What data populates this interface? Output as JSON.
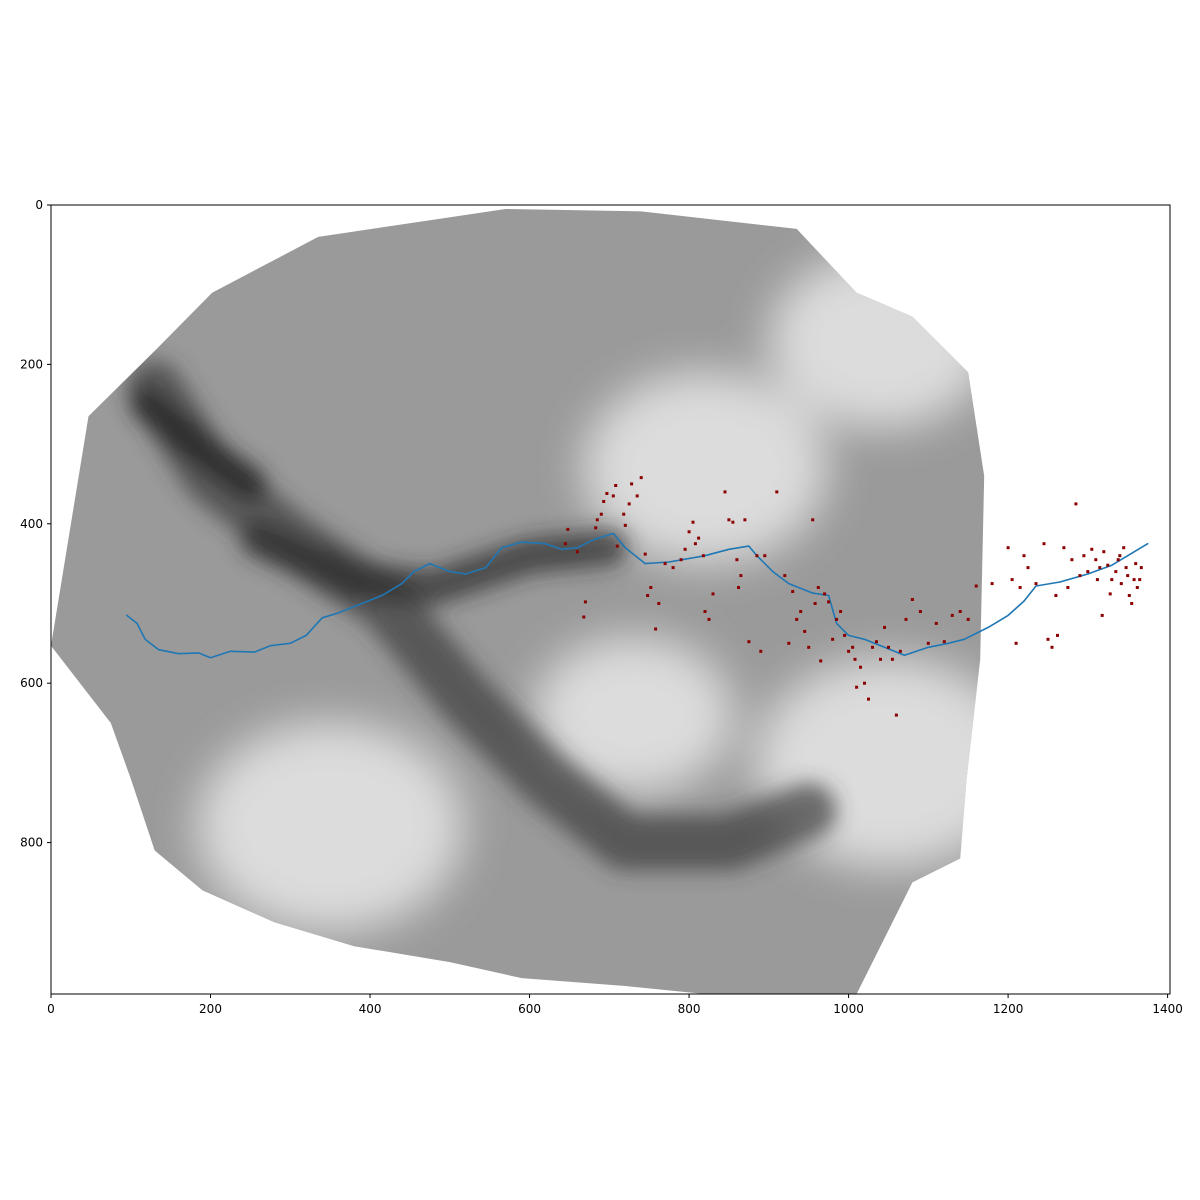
{
  "chart_data": {
    "type": "heatmap",
    "title": "",
    "xlabel": "",
    "ylabel": "",
    "xlim": [
      0,
      1403
    ],
    "ylim": [
      990,
      0
    ],
    "x_ticks": [
      {
        "value": 0,
        "label": "0"
      },
      {
        "value": 200,
        "label": "200"
      },
      {
        "value": 400,
        "label": "400"
      },
      {
        "value": 600,
        "label": "600"
      },
      {
        "value": 800,
        "label": "800"
      },
      {
        "value": 1000,
        "label": "1000"
      },
      {
        "value": 1200,
        "label": "1200"
      },
      {
        "value": 1400,
        "label": "1400"
      }
    ],
    "y_ticks": [
      {
        "value": 0,
        "label": "0"
      },
      {
        "value": 200,
        "label": "200"
      },
      {
        "value": 400,
        "label": "400"
      },
      {
        "value": 600,
        "label": "600"
      },
      {
        "value": 800,
        "label": "800"
      }
    ],
    "colormap": "gray",
    "colors": {
      "river": "#1f77b4",
      "points": "#8b0000"
    },
    "raster_boundary": [
      [
        0,
        553
      ],
      [
        47,
        265
      ],
      [
        135,
        178
      ],
      [
        202,
        110
      ],
      [
        335,
        40
      ],
      [
        570,
        5
      ],
      [
        740,
        8
      ],
      [
        935,
        30
      ],
      [
        1010,
        110
      ],
      [
        1080,
        140
      ],
      [
        1150,
        210
      ],
      [
        1170,
        340
      ],
      [
        1165,
        570
      ],
      [
        1148,
        720
      ],
      [
        1140,
        820
      ],
      [
        1080,
        850
      ],
      [
        1010,
        990
      ],
      [
        820,
        990
      ],
      [
        720,
        980
      ],
      [
        590,
        970
      ],
      [
        500,
        950
      ],
      [
        380,
        930
      ],
      [
        280,
        900
      ],
      [
        190,
        860
      ],
      [
        130,
        810
      ],
      [
        100,
        720
      ],
      [
        75,
        650
      ]
    ],
    "dark_valleys": [
      {
        "points": [
          [
            130,
            230
          ],
          [
            200,
            340
          ],
          [
            300,
            420
          ],
          [
            420,
            500
          ],
          [
            520,
            620
          ],
          [
            620,
            720
          ],
          [
            720,
            800
          ],
          [
            850,
            800
          ],
          [
            950,
            760
          ]
        ],
        "width": 70
      },
      {
        "points": [
          [
            260,
            420
          ],
          [
            380,
            470
          ],
          [
            480,
            480
          ],
          [
            600,
            440
          ],
          [
            700,
            430
          ]
        ],
        "width": 45
      },
      {
        "points": [
          [
            120,
            250
          ],
          [
            180,
            300
          ],
          [
            250,
            350
          ]
        ],
        "width": 40
      }
    ],
    "bright_ridges": [
      {
        "cx": 730,
        "cy": 640,
        "r": 90
      },
      {
        "cx": 820,
        "cy": 330,
        "r": 110
      },
      {
        "cx": 1050,
        "cy": 700,
        "r": 120
      },
      {
        "cx": 350,
        "cy": 780,
        "r": 120
      },
      {
        "cx": 1040,
        "cy": 170,
        "r": 100
      }
    ],
    "series": [
      {
        "type": "line",
        "points": [
          [
            95,
            515
          ],
          [
            108,
            525
          ],
          [
            118,
            545
          ],
          [
            135,
            558
          ],
          [
            160,
            563
          ],
          [
            185,
            562
          ],
          [
            200,
            568
          ],
          [
            225,
            560
          ],
          [
            255,
            561
          ],
          [
            275,
            553
          ],
          [
            300,
            550
          ],
          [
            320,
            540
          ],
          [
            340,
            518
          ],
          [
            360,
            512
          ],
          [
            390,
            500
          ],
          [
            415,
            490
          ],
          [
            440,
            475
          ],
          [
            455,
            460
          ],
          [
            475,
            450
          ],
          [
            500,
            460
          ],
          [
            520,
            463
          ],
          [
            545,
            455
          ],
          [
            565,
            430
          ],
          [
            590,
            423
          ],
          [
            620,
            425
          ],
          [
            640,
            432
          ],
          [
            660,
            430
          ],
          [
            680,
            420
          ],
          [
            705,
            412
          ],
          [
            720,
            430
          ],
          [
            745,
            450
          ],
          [
            775,
            448
          ],
          [
            820,
            440
          ],
          [
            850,
            432
          ],
          [
            875,
            428
          ],
          [
            885,
            440
          ],
          [
            905,
            460
          ],
          [
            925,
            475
          ],
          [
            955,
            487
          ],
          [
            975,
            490
          ],
          [
            985,
            525
          ],
          [
            1000,
            540
          ],
          [
            1020,
            545
          ],
          [
            1045,
            555
          ],
          [
            1070,
            565
          ],
          [
            1100,
            555
          ],
          [
            1125,
            550
          ],
          [
            1145,
            545
          ],
          [
            1175,
            530
          ],
          [
            1200,
            515
          ],
          [
            1220,
            497
          ],
          [
            1235,
            478
          ],
          [
            1265,
            473
          ],
          [
            1300,
            463
          ],
          [
            1330,
            452
          ],
          [
            1350,
            440
          ],
          [
            1375,
            425
          ]
        ]
      },
      {
        "type": "scatter",
        "points": [
          [
            645,
            425
          ],
          [
            648,
            407
          ],
          [
            660,
            435
          ],
          [
            668,
            517
          ],
          [
            670,
            498
          ],
          [
            683,
            405
          ],
          [
            685,
            395
          ],
          [
            690,
            388
          ],
          [
            693,
            372
          ],
          [
            697,
            362
          ],
          [
            705,
            365
          ],
          [
            708,
            352
          ],
          [
            710,
            428
          ],
          [
            718,
            388
          ],
          [
            720,
            402
          ],
          [
            725,
            375
          ],
          [
            728,
            350
          ],
          [
            735,
            365
          ],
          [
            740,
            342
          ],
          [
            745,
            438
          ],
          [
            748,
            490
          ],
          [
            752,
            480
          ],
          [
            758,
            532
          ],
          [
            762,
            500
          ],
          [
            770,
            450
          ],
          [
            780,
            455
          ],
          [
            790,
            445
          ],
          [
            795,
            432
          ],
          [
            800,
            410
          ],
          [
            805,
            398
          ],
          [
            808,
            425
          ],
          [
            812,
            418
          ],
          [
            818,
            440
          ],
          [
            820,
            510
          ],
          [
            825,
            520
          ],
          [
            830,
            488
          ],
          [
            845,
            360
          ],
          [
            850,
            395
          ],
          [
            855,
            398
          ],
          [
            860,
            445
          ],
          [
            862,
            480
          ],
          [
            865,
            465
          ],
          [
            870,
            395
          ],
          [
            875,
            548
          ],
          [
            885,
            440
          ],
          [
            890,
            560
          ],
          [
            895,
            440
          ],
          [
            910,
            360
          ],
          [
            920,
            465
          ],
          [
            925,
            550
          ],
          [
            930,
            485
          ],
          [
            935,
            520
          ],
          [
            940,
            510
          ],
          [
            945,
            535
          ],
          [
            950,
            555
          ],
          [
            955,
            395
          ],
          [
            958,
            500
          ],
          [
            962,
            480
          ],
          [
            965,
            572
          ],
          [
            970,
            488
          ],
          [
            975,
            498
          ],
          [
            980,
            545
          ],
          [
            985,
            520
          ],
          [
            990,
            510
          ],
          [
            995,
            540
          ],
          [
            1000,
            560
          ],
          [
            1005,
            555
          ],
          [
            1008,
            570
          ],
          [
            1010,
            605
          ],
          [
            1015,
            580
          ],
          [
            1020,
            600
          ],
          [
            1025,
            620
          ],
          [
            1030,
            555
          ],
          [
            1035,
            548
          ],
          [
            1040,
            570
          ],
          [
            1045,
            530
          ],
          [
            1050,
            555
          ],
          [
            1055,
            570
          ],
          [
            1060,
            640
          ],
          [
            1065,
            560
          ],
          [
            1072,
            520
          ],
          [
            1080,
            495
          ],
          [
            1090,
            510
          ],
          [
            1100,
            550
          ],
          [
            1110,
            525
          ],
          [
            1120,
            548
          ],
          [
            1130,
            515
          ],
          [
            1140,
            510
          ],
          [
            1150,
            520
          ],
          [
            1160,
            478
          ],
          [
            1180,
            475
          ],
          [
            1200,
            430
          ],
          [
            1205,
            470
          ],
          [
            1210,
            550
          ],
          [
            1215,
            480
          ],
          [
            1220,
            440
          ],
          [
            1225,
            455
          ],
          [
            1235,
            475
          ],
          [
            1245,
            425
          ],
          [
            1250,
            545
          ],
          [
            1255,
            555
          ],
          [
            1260,
            490
          ],
          [
            1262,
            540
          ],
          [
            1270,
            430
          ],
          [
            1275,
            480
          ],
          [
            1280,
            445
          ],
          [
            1285,
            375
          ],
          [
            1290,
            465
          ],
          [
            1295,
            440
          ],
          [
            1300,
            460
          ],
          [
            1305,
            432
          ],
          [
            1310,
            445
          ],
          [
            1312,
            470
          ],
          [
            1315,
            455
          ],
          [
            1318,
            515
          ],
          [
            1320,
            435
          ],
          [
            1325,
            452
          ],
          [
            1328,
            488
          ],
          [
            1330,
            470
          ],
          [
            1335,
            460
          ],
          [
            1338,
            445
          ],
          [
            1340,
            440
          ],
          [
            1342,
            475
          ],
          [
            1345,
            430
          ],
          [
            1348,
            455
          ],
          [
            1350,
            465
          ],
          [
            1352,
            490
          ],
          [
            1355,
            500
          ],
          [
            1358,
            470
          ],
          [
            1360,
            450
          ],
          [
            1362,
            480
          ],
          [
            1365,
            470
          ],
          [
            1367,
            455
          ]
        ]
      }
    ]
  }
}
